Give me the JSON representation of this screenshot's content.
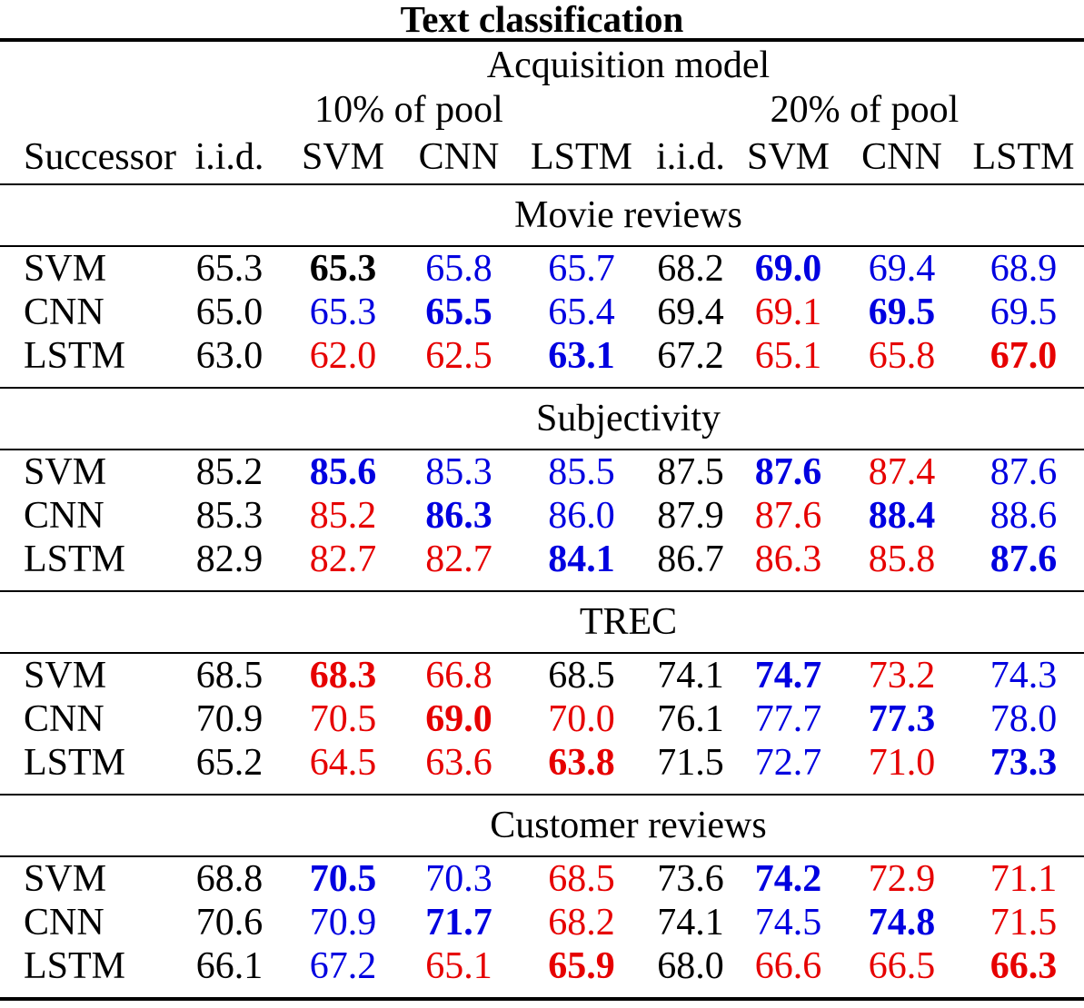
{
  "title": "Text classification",
  "colors": {
    "black": "#000000",
    "blue": "#0000e0",
    "red": "#e60000"
  },
  "header": {
    "acquisition_model": "Acquisition model",
    "groups": [
      "10% of pool",
      "20% of pool"
    ],
    "columns": [
      "Successor",
      "i.i.d.",
      "SVM",
      "CNN",
      "LSTM",
      "i.i.d.",
      "SVM",
      "CNN",
      "LSTM"
    ]
  },
  "sections": [
    {
      "name": "Movie reviews",
      "rows": [
        {
          "successor": "SVM",
          "cells": [
            {
              "v": "65.3",
              "c": "black",
              "b": false
            },
            {
              "v": "65.3",
              "c": "black",
              "b": true
            },
            {
              "v": "65.8",
              "c": "blue",
              "b": false
            },
            {
              "v": "65.7",
              "c": "blue",
              "b": false
            },
            {
              "v": "68.2",
              "c": "black",
              "b": false
            },
            {
              "v": "69.0",
              "c": "blue",
              "b": true
            },
            {
              "v": "69.4",
              "c": "blue",
              "b": false
            },
            {
              "v": "68.9",
              "c": "blue",
              "b": false
            }
          ]
        },
        {
          "successor": "CNN",
          "cells": [
            {
              "v": "65.0",
              "c": "black",
              "b": false
            },
            {
              "v": "65.3",
              "c": "blue",
              "b": false
            },
            {
              "v": "65.5",
              "c": "blue",
              "b": true
            },
            {
              "v": "65.4",
              "c": "blue",
              "b": false
            },
            {
              "v": "69.4",
              "c": "black",
              "b": false
            },
            {
              "v": "69.1",
              "c": "red",
              "b": false
            },
            {
              "v": "69.5",
              "c": "blue",
              "b": true
            },
            {
              "v": "69.5",
              "c": "blue",
              "b": false
            }
          ]
        },
        {
          "successor": "LSTM",
          "cells": [
            {
              "v": "63.0",
              "c": "black",
              "b": false
            },
            {
              "v": "62.0",
              "c": "red",
              "b": false
            },
            {
              "v": "62.5",
              "c": "red",
              "b": false
            },
            {
              "v": "63.1",
              "c": "blue",
              "b": true
            },
            {
              "v": "67.2",
              "c": "black",
              "b": false
            },
            {
              "v": "65.1",
              "c": "red",
              "b": false
            },
            {
              "v": "65.8",
              "c": "red",
              "b": false
            },
            {
              "v": "67.0",
              "c": "red",
              "b": true
            }
          ]
        }
      ]
    },
    {
      "name": "Subjectivity",
      "rows": [
        {
          "successor": "SVM",
          "cells": [
            {
              "v": "85.2",
              "c": "black",
              "b": false
            },
            {
              "v": "85.6",
              "c": "blue",
              "b": true
            },
            {
              "v": "85.3",
              "c": "blue",
              "b": false
            },
            {
              "v": "85.5",
              "c": "blue",
              "b": false
            },
            {
              "v": "87.5",
              "c": "black",
              "b": false
            },
            {
              "v": "87.6",
              "c": "blue",
              "b": true
            },
            {
              "v": "87.4",
              "c": "red",
              "b": false
            },
            {
              "v": "87.6",
              "c": "blue",
              "b": false
            }
          ]
        },
        {
          "successor": "CNN",
          "cells": [
            {
              "v": "85.3",
              "c": "black",
              "b": false
            },
            {
              "v": "85.2",
              "c": "red",
              "b": false
            },
            {
              "v": "86.3",
              "c": "blue",
              "b": true
            },
            {
              "v": "86.0",
              "c": "blue",
              "b": false
            },
            {
              "v": "87.9",
              "c": "black",
              "b": false
            },
            {
              "v": "87.6",
              "c": "red",
              "b": false
            },
            {
              "v": "88.4",
              "c": "blue",
              "b": true
            },
            {
              "v": "88.6",
              "c": "blue",
              "b": false
            }
          ]
        },
        {
          "successor": "LSTM",
          "cells": [
            {
              "v": "82.9",
              "c": "black",
              "b": false
            },
            {
              "v": "82.7",
              "c": "red",
              "b": false
            },
            {
              "v": "82.7",
              "c": "red",
              "b": false
            },
            {
              "v": "84.1",
              "c": "blue",
              "b": true
            },
            {
              "v": "86.7",
              "c": "black",
              "b": false
            },
            {
              "v": "86.3",
              "c": "red",
              "b": false
            },
            {
              "v": "85.8",
              "c": "red",
              "b": false
            },
            {
              "v": "87.6",
              "c": "blue",
              "b": true
            }
          ]
        }
      ]
    },
    {
      "name": "TREC",
      "rows": [
        {
          "successor": "SVM",
          "cells": [
            {
              "v": "68.5",
              "c": "black",
              "b": false
            },
            {
              "v": "68.3",
              "c": "red",
              "b": true
            },
            {
              "v": "66.8",
              "c": "red",
              "b": false
            },
            {
              "v": "68.5",
              "c": "black",
              "b": false
            },
            {
              "v": "74.1",
              "c": "black",
              "b": false
            },
            {
              "v": "74.7",
              "c": "blue",
              "b": true
            },
            {
              "v": "73.2",
              "c": "red",
              "b": false
            },
            {
              "v": "74.3",
              "c": "blue",
              "b": false
            }
          ]
        },
        {
          "successor": "CNN",
          "cells": [
            {
              "v": "70.9",
              "c": "black",
              "b": false
            },
            {
              "v": "70.5",
              "c": "red",
              "b": false
            },
            {
              "v": "69.0",
              "c": "red",
              "b": true
            },
            {
              "v": "70.0",
              "c": "red",
              "b": false
            },
            {
              "v": "76.1",
              "c": "black",
              "b": false
            },
            {
              "v": "77.7",
              "c": "blue",
              "b": false
            },
            {
              "v": "77.3",
              "c": "blue",
              "b": true
            },
            {
              "v": "78.0",
              "c": "blue",
              "b": false
            }
          ]
        },
        {
          "successor": "LSTM",
          "cells": [
            {
              "v": "65.2",
              "c": "black",
              "b": false
            },
            {
              "v": "64.5",
              "c": "red",
              "b": false
            },
            {
              "v": "63.6",
              "c": "red",
              "b": false
            },
            {
              "v": "63.8",
              "c": "red",
              "b": true
            },
            {
              "v": "71.5",
              "c": "black",
              "b": false
            },
            {
              "v": "72.7",
              "c": "blue",
              "b": false
            },
            {
              "v": "71.0",
              "c": "red",
              "b": false
            },
            {
              "v": "73.3",
              "c": "blue",
              "b": true
            }
          ]
        }
      ]
    },
    {
      "name": "Customer reviews",
      "rows": [
        {
          "successor": "SVM",
          "cells": [
            {
              "v": "68.8",
              "c": "black",
              "b": false
            },
            {
              "v": "70.5",
              "c": "blue",
              "b": true
            },
            {
              "v": "70.3",
              "c": "blue",
              "b": false
            },
            {
              "v": "68.5",
              "c": "red",
              "b": false
            },
            {
              "v": "73.6",
              "c": "black",
              "b": false
            },
            {
              "v": "74.2",
              "c": "blue",
              "b": true
            },
            {
              "v": "72.9",
              "c": "red",
              "b": false
            },
            {
              "v": "71.1",
              "c": "red",
              "b": false
            }
          ]
        },
        {
          "successor": "CNN",
          "cells": [
            {
              "v": "70.6",
              "c": "black",
              "b": false
            },
            {
              "v": "70.9",
              "c": "blue",
              "b": false
            },
            {
              "v": "71.7",
              "c": "blue",
              "b": true
            },
            {
              "v": "68.2",
              "c": "red",
              "b": false
            },
            {
              "v": "74.1",
              "c": "black",
              "b": false
            },
            {
              "v": "74.5",
              "c": "blue",
              "b": false
            },
            {
              "v": "74.8",
              "c": "blue",
              "b": true
            },
            {
              "v": "71.5",
              "c": "red",
              "b": false
            }
          ]
        },
        {
          "successor": "LSTM",
          "cells": [
            {
              "v": "66.1",
              "c": "black",
              "b": false
            },
            {
              "v": "67.2",
              "c": "blue",
              "b": false
            },
            {
              "v": "65.1",
              "c": "red",
              "b": false
            },
            {
              "v": "65.9",
              "c": "red",
              "b": true
            },
            {
              "v": "68.0",
              "c": "black",
              "b": false
            },
            {
              "v": "66.6",
              "c": "red",
              "b": false
            },
            {
              "v": "66.5",
              "c": "red",
              "b": false
            },
            {
              "v": "66.3",
              "c": "red",
              "b": true
            }
          ]
        }
      ]
    }
  ]
}
